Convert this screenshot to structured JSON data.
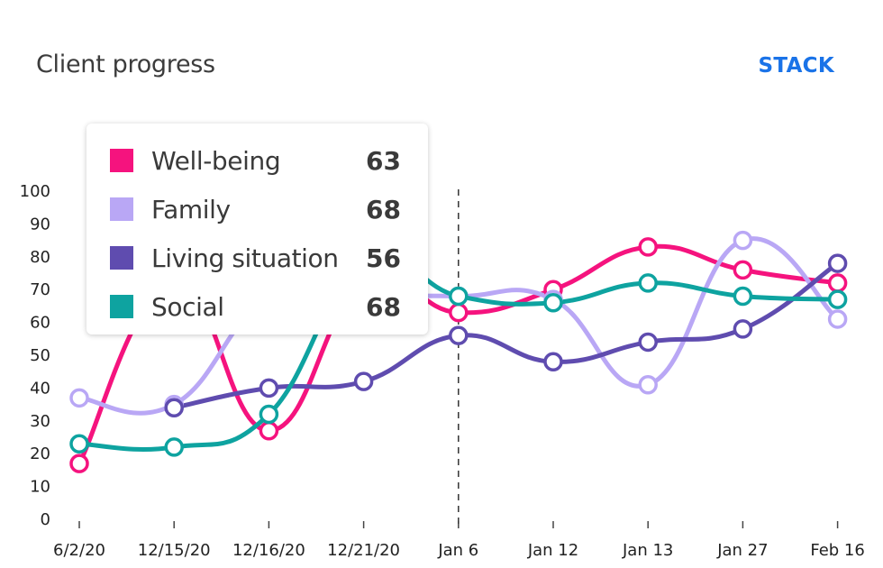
{
  "header": {
    "title": "Client progress",
    "stack_label": "STACK"
  },
  "chart_data": {
    "type": "line",
    "title": "Client progress",
    "categories": [
      "6/2/20",
      "12/15/20",
      "12/16/20",
      "12/21/20",
      "Jan 6",
      "Jan 12",
      "Jan 13",
      "Jan 27",
      "Feb 16"
    ],
    "ylim": [
      0,
      100
    ],
    "yticks": [
      0,
      10,
      20,
      30,
      40,
      50,
      60,
      70,
      80,
      90,
      100
    ],
    "grid": false,
    "highlight_index": 4,
    "series": [
      {
        "name": "Well-being",
        "color": "#f5137e",
        "values": [
          17,
          72,
          27,
          72,
          63,
          70,
          83,
          76,
          72
        ]
      },
      {
        "name": "Family",
        "color": "#b9a7f5",
        "values": [
          37,
          35,
          68,
          68,
          68,
          67,
          41,
          85,
          61
        ]
      },
      {
        "name": "Living situation",
        "color": "#5f4caf",
        "values": [
          null,
          34,
          40,
          42,
          56,
          48,
          54,
          58,
          78
        ]
      },
      {
        "name": "Social",
        "color": "#0ea3a0",
        "values": [
          23,
          22,
          32,
          78,
          68,
          66,
          72,
          68,
          67
        ]
      }
    ]
  },
  "tooltip": {
    "rows": [
      {
        "label": "Well-being",
        "value": "63",
        "color": "#f5137e"
      },
      {
        "label": "Family",
        "value": "68",
        "color": "#b9a7f5"
      },
      {
        "label": "Living situation",
        "value": "56",
        "color": "#5f4caf"
      },
      {
        "label": "Social",
        "value": "68",
        "color": "#0ea3a0"
      }
    ]
  }
}
